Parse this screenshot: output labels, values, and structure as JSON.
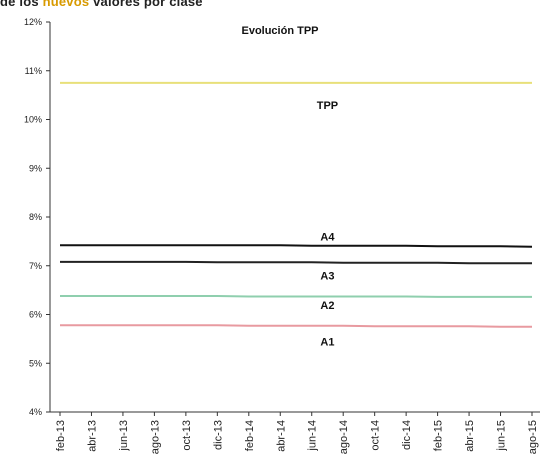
{
  "caption": {
    "prefix": "de los",
    "highlight": "nuevos",
    "suffix": "valores por clase"
  },
  "chart_data": {
    "type": "line",
    "title": "Evolución TPP",
    "xlabel": "",
    "ylabel": "",
    "ylim": [
      4,
      12
    ],
    "yticks": [
      4,
      5,
      6,
      7,
      8,
      9,
      10,
      11,
      12
    ],
    "ytick_labels": [
      "4%",
      "5%",
      "6%",
      "7%",
      "8%",
      "9%",
      "10%",
      "11%",
      "12%"
    ],
    "x": [
      "feb-13",
      "abr-13",
      "jun-13",
      "ago-13",
      "oct-13",
      "dic-13",
      "feb-14",
      "abr-14",
      "jun-14",
      "ago-14",
      "oct-14",
      "dic-14",
      "feb-15",
      "abr-15",
      "jun-15",
      "ago-15"
    ],
    "grid": false,
    "series": [
      {
        "name": "TPP",
        "color": "#e8e07a",
        "values": [
          10.75,
          10.75,
          10.75,
          10.75,
          10.75,
          10.75,
          10.75,
          10.75,
          10.75,
          10.75,
          10.75,
          10.75,
          10.75,
          10.75,
          10.75,
          10.75
        ],
        "label_x_index": 8.5,
        "label_value": 10.3
      },
      {
        "name": "A4",
        "color": "#111111",
        "values": [
          7.42,
          7.42,
          7.42,
          7.42,
          7.42,
          7.42,
          7.42,
          7.42,
          7.41,
          7.41,
          7.41,
          7.41,
          7.4,
          7.4,
          7.4,
          7.39
        ],
        "label_x_index": 8.5,
        "label_value": 7.6
      },
      {
        "name": "A3",
        "color": "#222222",
        "values": [
          7.08,
          7.08,
          7.08,
          7.08,
          7.08,
          7.07,
          7.07,
          7.07,
          7.07,
          7.06,
          7.06,
          7.06,
          7.06,
          7.05,
          7.05,
          7.05
        ],
        "label_x_index": 8.5,
        "label_value": 6.8
      },
      {
        "name": "A2",
        "color": "#8fcfae",
        "values": [
          6.38,
          6.38,
          6.38,
          6.38,
          6.38,
          6.38,
          6.37,
          6.37,
          6.37,
          6.37,
          6.37,
          6.37,
          6.36,
          6.36,
          6.36,
          6.36
        ],
        "label_x_index": 8.5,
        "label_value": 6.2
      },
      {
        "name": "A1",
        "color": "#e89aa0",
        "values": [
          5.78,
          5.78,
          5.78,
          5.78,
          5.78,
          5.78,
          5.77,
          5.77,
          5.77,
          5.77,
          5.76,
          5.76,
          5.76,
          5.76,
          5.75,
          5.75
        ],
        "label_x_index": 8.5,
        "label_value": 5.45
      }
    ]
  }
}
